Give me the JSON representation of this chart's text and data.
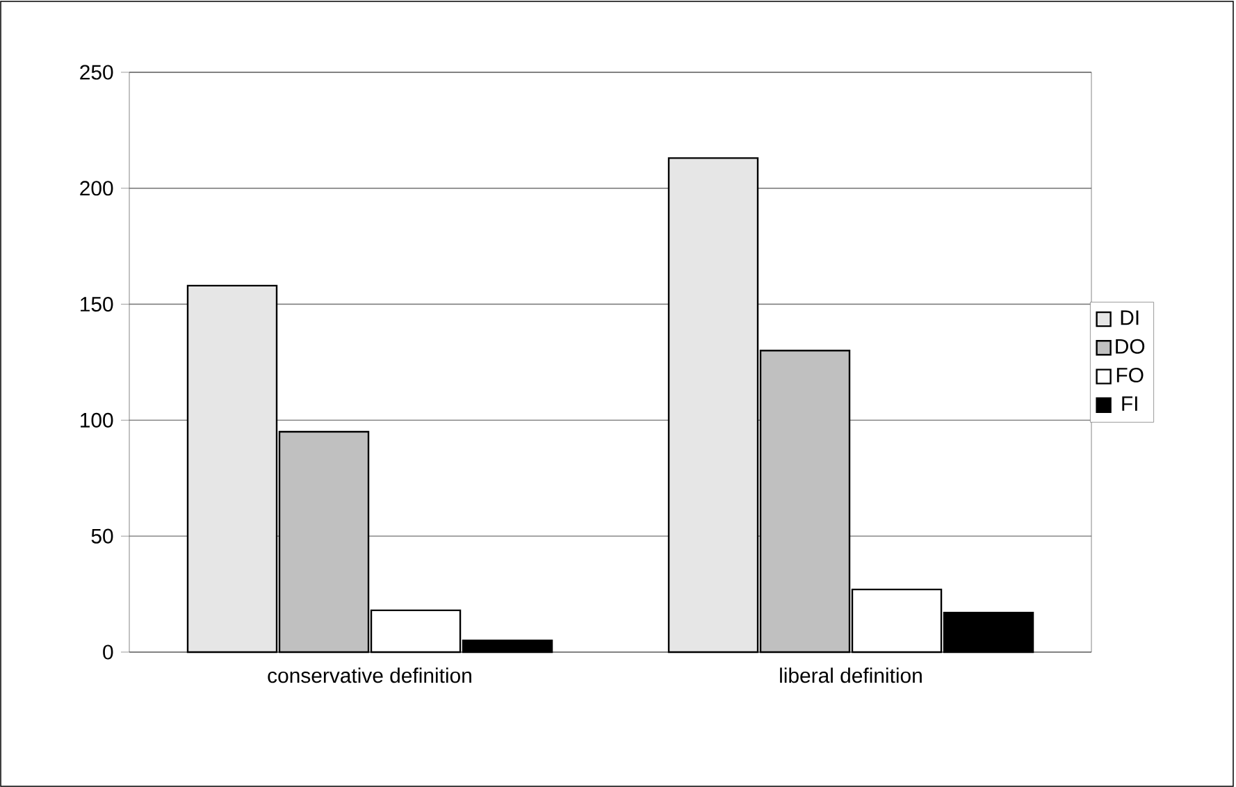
{
  "chart_data": {
    "type": "bar",
    "categories": [
      "conservative definition",
      "liberal definition"
    ],
    "series": [
      {
        "name": "DI",
        "color": "#e6e6e6",
        "values": [
          158,
          213
        ]
      },
      {
        "name": "DO",
        "color": "#c0c0c0",
        "values": [
          95,
          130
        ]
      },
      {
        "name": "FO",
        "color": "#ffffff",
        "values": [
          18,
          27
        ]
      },
      {
        "name": "FI",
        "color": "#000000",
        "values": [
          5,
          17
        ]
      }
    ],
    "ylim": [
      0,
      250
    ],
    "yticks": [
      0,
      50,
      100,
      150,
      200,
      250
    ],
    "grid": "y",
    "legend": "right"
  }
}
